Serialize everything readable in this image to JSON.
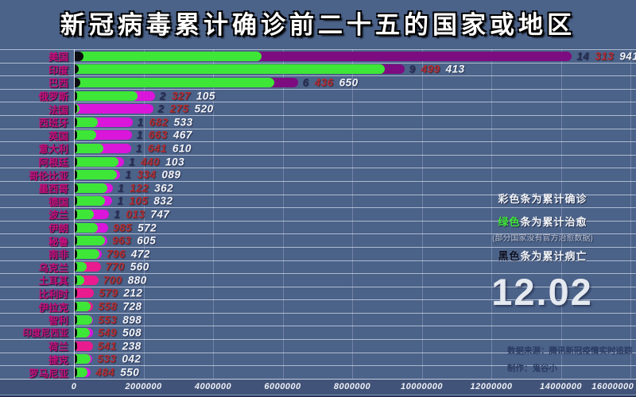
{
  "title": "新冠病毒累计确诊前二十五的国家或地区",
  "date_label": "12.02",
  "legend": {
    "line1": "彩色条为累计确诊",
    "line2_colored_word": "绿色",
    "line2_rest": "条为累计治愈",
    "note": "(部分国家没有官方治愈数据)",
    "line3_colored_word": "黑色",
    "line3_rest": "条为累计病亡"
  },
  "credits": {
    "source": "数据来源：腾讯新冠疫情实时追踪",
    "maker": "制作：鬼谷小"
  },
  "colors": {
    "background": "#4b6289",
    "recovered_green": "#3ee637",
    "deaths_black": "#0d0d12",
    "confirmed_purple": "#7c0c80",
    "confirmed_magenta": "#da16da",
    "confirmed_pink": "#ea1b8e",
    "digit_group_navy": "#272b52",
    "digit_group_red": "#b22c31",
    "digit_group_white": "#f4f6fa",
    "country_label": "#c6107e"
  },
  "chart_data": {
    "type": "bar",
    "orientation": "horizontal",
    "title": "新冠病毒累计确诊前二十五的国家或地区",
    "date_shown": "12.02",
    "x_axis": {
      "min": 0,
      "max": 16000000,
      "tick_interval": 2000000,
      "ticks": [
        0,
        2000000,
        4000000,
        6000000,
        8000000,
        10000000,
        12000000,
        14000000,
        16000000
      ]
    },
    "legend_meaning": {
      "colored_bar": "累计确诊",
      "green_bar": "累计治愈",
      "black_bar": "累计病亡"
    },
    "rows": [
      {
        "rank": 1,
        "country": "美国",
        "confirmed": 14313941,
        "recovered_approx": 5400000,
        "deaths_approx": 280000,
        "color": "#7c0c80"
      },
      {
        "rank": 2,
        "country": "印度",
        "confirmed": 9499413,
        "recovered_approx": 8930000,
        "deaths_approx": 140000,
        "color": "#7c0c80"
      },
      {
        "rank": 3,
        "country": "巴西",
        "confirmed": 6436650,
        "recovered_approx": 5760000,
        "deaths_approx": 175000,
        "color": "#7c0c80"
      },
      {
        "rank": 4,
        "country": "俄罗斯",
        "confirmed": 2327105,
        "recovered_approx": 1830000,
        "deaths_approx": 41000,
        "color": "#da16da"
      },
      {
        "rank": 5,
        "country": "法国",
        "confirmed": 2275520,
        "recovered_approx": 160000,
        "deaths_approx": 54000,
        "color": "#da16da"
      },
      {
        "rank": 6,
        "country": "西班牙",
        "confirmed": 1682533,
        "recovered_approx": 690000,
        "deaths_approx": 46000,
        "color": "#da16da"
      },
      {
        "rank": 7,
        "country": "英国",
        "confirmed": 1663467,
        "recovered_approx": 650000,
        "deaths_approx": 59000,
        "color": "#da16da"
      },
      {
        "rank": 8,
        "country": "意大利",
        "confirmed": 1641610,
        "recovered_approx": 850000,
        "deaths_approx": 57000,
        "color": "#da16da"
      },
      {
        "rank": 9,
        "country": "阿根廷",
        "confirmed": 1440103,
        "recovered_approx": 1270000,
        "deaths_approx": 39000,
        "color": "#da16da"
      },
      {
        "rank": 10,
        "country": "哥伦比亚",
        "confirmed": 1334089,
        "recovered_approx": 1230000,
        "deaths_approx": 37000,
        "color": "#da16da"
      },
      {
        "rank": 11,
        "country": "墨西哥",
        "confirmed": 1122362,
        "recovered_approx": 950000,
        "deaths_approx": 107000,
        "color": "#da16da"
      },
      {
        "rank": 12,
        "country": "德国",
        "confirmed": 1105832,
        "recovered_approx": 900000,
        "deaths_approx": 18000,
        "color": "#da16da"
      },
      {
        "rank": 13,
        "country": "波兰",
        "confirmed": 1013747,
        "recovered_approx": 580000,
        "deaths_approx": 18000,
        "color": "#da16da"
      },
      {
        "rank": 14,
        "country": "伊朗",
        "confirmed": 985572,
        "recovered_approx": 690000,
        "deaths_approx": 49000,
        "color": "#da16da"
      },
      {
        "rank": 15,
        "country": "秘鲁",
        "confirmed": 963605,
        "recovered_approx": 890000,
        "deaths_approx": 36000,
        "color": "#da16da"
      },
      {
        "rank": 16,
        "country": "南非",
        "confirmed": 796472,
        "recovered_approx": 730000,
        "deaths_approx": 22000,
        "color": "#da16da"
      },
      {
        "rank": 17,
        "country": "乌克兰",
        "confirmed": 770560,
        "recovered_approx": 370000,
        "deaths_approx": 13000,
        "color": "#ea1b8e"
      },
      {
        "rank": 18,
        "country": "土耳其",
        "confirmed": 700880,
        "recovered_approx": 300000,
        "deaths_approx": 14000,
        "color": "#ea1b8e"
      },
      {
        "rank": 19,
        "country": "比利时",
        "confirmed": 579212,
        "recovered_approx": 0,
        "deaths_approx": 17000,
        "color": "#ea1b8e"
      },
      {
        "rank": 20,
        "country": "伊拉克",
        "confirmed": 558728,
        "recovered_approx": 490000,
        "deaths_approx": 12000,
        "color": "#ea1b8e"
      },
      {
        "rank": 21,
        "country": "智利",
        "confirmed": 553898,
        "recovered_approx": 530000,
        "deaths_approx": 15000,
        "color": "#da16da"
      },
      {
        "rank": 22,
        "country": "印度尼西亚",
        "confirmed": 549508,
        "recovered_approx": 460000,
        "deaths_approx": 17000,
        "color": "#da16da"
      },
      {
        "rank": 23,
        "country": "荷兰",
        "confirmed": 541238,
        "recovered_approx": 0,
        "deaths_approx": 9000,
        "color": "#ea1b8e"
      },
      {
        "rank": 24,
        "country": "捷克",
        "confirmed": 533042,
        "recovered_approx": 470000,
        "deaths_approx": 9000,
        "color": "#da16da"
      },
      {
        "rank": 25,
        "country": "罗马尼亚",
        "confirmed": 484550,
        "recovered_approx": 380000,
        "deaths_approx": 12000,
        "color": "#da16da"
      }
    ]
  }
}
